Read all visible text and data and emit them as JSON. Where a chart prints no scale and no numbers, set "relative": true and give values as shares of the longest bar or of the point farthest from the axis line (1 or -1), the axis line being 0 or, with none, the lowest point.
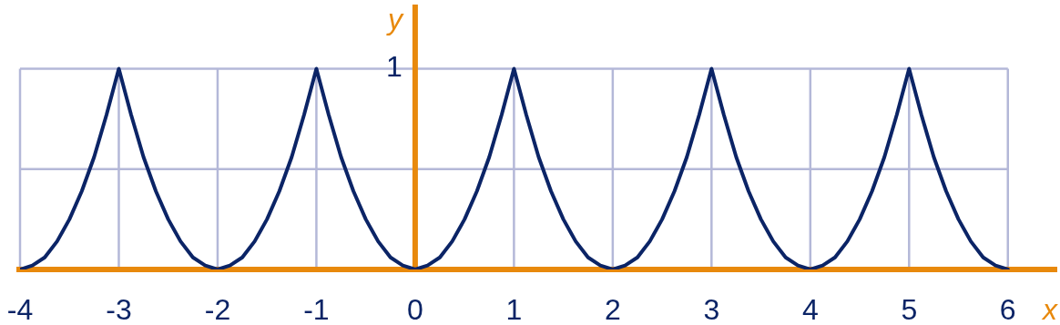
{
  "chart_data": {
    "type": "line",
    "xlabel": "x",
    "ylabel": "y",
    "relative": true,
    "annotations": [
      "1"
    ],
    "ref_lines": [
      {
        "axis": "x",
        "value": 0,
        "color": "#e8890c"
      }
    ],
    "x": [
      -4,
      -3.875,
      -3.75,
      -3.625,
      -3.5,
      -3.375,
      -3.25,
      -3.125,
      -3,
      -2.875,
      -2.75,
      -2.625,
      -2.5,
      -2.375,
      -2.25,
      -2.125,
      -2,
      -1.875,
      -1.75,
      -1.625,
      -1.5,
      -1.375,
      -1.25,
      -1.125,
      -1,
      -0.875,
      -0.75,
      -0.625,
      -0.5,
      -0.375,
      -0.25,
      -0.125,
      0,
      0.125,
      0.25,
      0.375,
      0.5,
      0.625,
      0.75,
      0.875,
      1,
      1.125,
      1.25,
      1.375,
      1.5,
      1.625,
      1.75,
      1.875,
      2,
      2.125,
      2.25,
      2.375,
      2.5,
      2.625,
      2.75,
      2.875,
      3,
      3.125,
      3.25,
      3.375,
      3.5,
      3.625,
      3.75,
      3.875,
      4,
      4.125,
      4.25,
      4.375,
      4.5,
      4.625,
      4.75,
      4.875,
      5,
      5.125,
      5.25,
      5.375,
      5.5,
      5.625,
      5.75,
      5.875,
      6
    ],
    "series": [
      {
        "color": "#0b2466",
        "values": [
          0,
          0.02,
          0.06,
          0.14,
          0.25,
          0.39,
          0.56,
          0.77,
          1,
          0.77,
          0.56,
          0.39,
          0.25,
          0.14,
          0.06,
          0.02,
          0,
          0.02,
          0.06,
          0.14,
          0.25,
          0.39,
          0.56,
          0.77,
          1,
          0.77,
          0.56,
          0.39,
          0.25,
          0.14,
          0.06,
          0.02,
          0,
          0.02,
          0.06,
          0.14,
          0.25,
          0.39,
          0.56,
          0.77,
          1,
          0.77,
          0.56,
          0.39,
          0.25,
          0.14,
          0.06,
          0.02,
          0,
          0.02,
          0.06,
          0.14,
          0.25,
          0.39,
          0.56,
          0.77,
          1,
          0.77,
          0.56,
          0.39,
          0.25,
          0.14,
          0.06,
          0.02,
          0,
          0.02,
          0.06,
          0.14,
          0.25,
          0.39,
          0.56,
          0.77,
          1,
          0.77,
          0.56,
          0.39,
          0.25,
          0.14,
          0.06,
          0.02,
          0
        ]
      }
    ],
    "xlim": [
      -4,
      6.5
    ],
    "xticks": [
      -4,
      -3,
      -2,
      -1,
      0,
      1,
      2,
      3,
      4,
      5,
      6
    ],
    "grid": true
  }
}
